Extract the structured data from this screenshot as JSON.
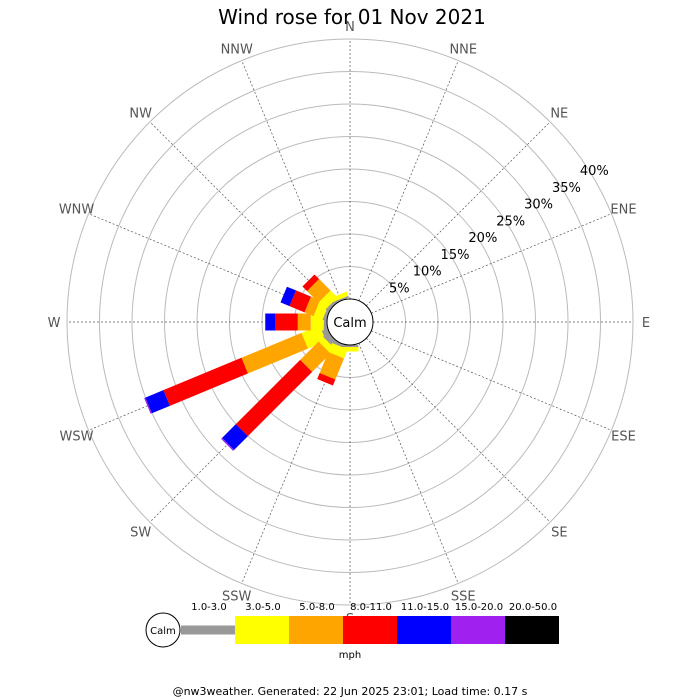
{
  "chart_data": {
    "type": "windrose",
    "title": "Wind rose for 01 Nov 2021",
    "calm_label": "Calm",
    "directions": [
      "N",
      "NNE",
      "NE",
      "ENE",
      "E",
      "ESE",
      "SE",
      "SSE",
      "S",
      "SSW",
      "SW",
      "WSW",
      "W",
      "WNW",
      "NW",
      "NNW"
    ],
    "rings": [
      5,
      10,
      15,
      20,
      25,
      30,
      35,
      40
    ],
    "ring_labels": [
      "5%",
      "10%",
      "15%",
      "20%",
      "25%",
      "30%",
      "35%",
      "40%"
    ],
    "speed_bins": [
      {
        "label": "1.0-3.0",
        "color": "#999999"
      },
      {
        "label": "3.0-5.0",
        "color": "#ffff00"
      },
      {
        "label": "5.0-8.0",
        "color": "#ffa500"
      },
      {
        "label": "8.0-11.0",
        "color": "#ff0000"
      },
      {
        "label": "11.0-15.0",
        "color": "#0000ff"
      },
      {
        "label": "15.0-20.0",
        "color": "#a020f0"
      },
      {
        "label": "20.0-50.0",
        "color": "#000000"
      }
    ],
    "unit": "mph",
    "cumulative_percent": {
      "WSW": [
        1.0,
        4.0,
        14.0,
        27.0,
        30.0,
        30.2
      ],
      "SW": [
        1.0,
        2.0,
        6.0,
        20.0,
        23.0,
        23.2
      ],
      "W": [
        0.5,
        2.5,
        4.5,
        8.0,
        9.5
      ],
      "WNW": [
        0.5,
        2.0,
        3.5,
        6.0,
        7.5
      ],
      "NW": [
        0.5,
        2.0,
        4.5,
        5.5
      ],
      "NNW": [
        0.3,
        1.0
      ],
      "SSW": [
        0.5,
        2.0,
        5.5,
        6.5
      ],
      "S": [
        0.3,
        1.0
      ]
    }
  },
  "footer": "@nw3weather. Generated: 22 Jun 2025 23:01; Load time: 0.17 s"
}
